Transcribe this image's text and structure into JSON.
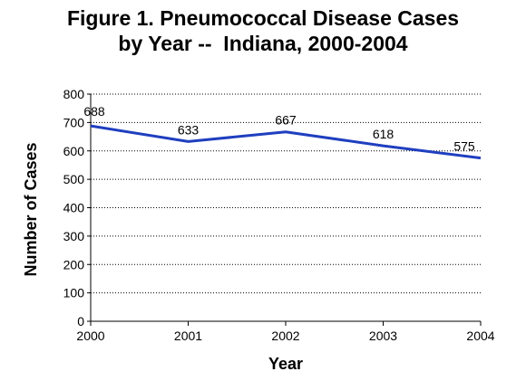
{
  "chart_data": {
    "type": "line",
    "title_lines": [
      "Figure 1. Pneumococcal Disease Cases",
      "by Year --  Indiana, 2000-2004"
    ],
    "xlabel": "Year",
    "ylabel": "Number of Cases",
    "x": [
      "2000",
      "2001",
      "2002",
      "2003",
      "2004"
    ],
    "series": [
      {
        "values": [
          688,
          633,
          667,
          618,
          575
        ],
        "data_labels": [
          "688",
          "633",
          "667",
          "618",
          "575"
        ],
        "color": "#1f3fbf"
      }
    ],
    "ylim": [
      0,
      800
    ],
    "yticks": [
      "0",
      "100",
      "200",
      "300",
      "400",
      "500",
      "600",
      "700",
      "800"
    ],
    "grid": "horizontal dotted",
    "legend": "none"
  }
}
